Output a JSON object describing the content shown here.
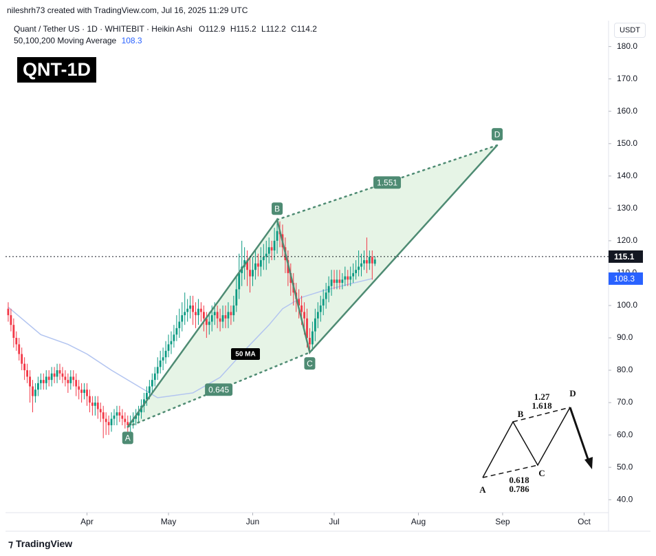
{
  "header": {
    "credit": "nileshrh73 created with TradingView.com, Jul 16, 2025 11:29 UTC",
    "symbol": "Quant / Tether US · 1D · WHITEBIT · Heikin Ashi",
    "ohlc": [
      "O112.9",
      "H115.2",
      "L112.2",
      "C114.2"
    ],
    "ma_title": "50,100,200 Moving Average",
    "badge": "QNT-1D",
    "currency": "USDT"
  },
  "footer": {
    "brand": "TradingView"
  },
  "chart_data": {
    "type": "candlestick",
    "up_color": "#089981",
    "down_color": "#f23645",
    "xlim": [
      61,
      283
    ],
    "ylim": [
      36,
      188
    ],
    "xticks": [
      {
        "value": 91,
        "label": "Apr"
      },
      {
        "value": 121,
        "label": "May"
      },
      {
        "value": 152,
        "label": "Jun"
      },
      {
        "value": 182,
        "label": "Jul"
      },
      {
        "value": 213,
        "label": "Aug"
      },
      {
        "value": 244,
        "label": "Sep"
      },
      {
        "value": 274,
        "label": "Oct"
      }
    ],
    "yticks": [
      {
        "value": 40,
        "label": "40.0"
      },
      {
        "value": 50,
        "label": "50.0"
      },
      {
        "value": 60,
        "label": "60.0"
      },
      {
        "value": 70,
        "label": "70.0"
      },
      {
        "value": 80,
        "label": "80.0"
      },
      {
        "value": 90,
        "label": "90.0"
      },
      {
        "value": 100,
        "label": "100.0"
      },
      {
        "value": 110,
        "label": "110.0"
      },
      {
        "value": 120,
        "label": "120.0"
      },
      {
        "value": 130,
        "label": "130.0"
      },
      {
        "value": 140,
        "label": "140.0"
      },
      {
        "value": 150,
        "label": "150.0"
      },
      {
        "value": 160,
        "label": "160.0"
      },
      {
        "value": 170,
        "label": "170.0"
      },
      {
        "value": 180,
        "label": "180.0"
      }
    ],
    "grid": false,
    "x_start": 62,
    "open": [
      99,
      97,
      94,
      90,
      88,
      85,
      82,
      80,
      78,
      75,
      72,
      74,
      76,
      77,
      76,
      78,
      77,
      79,
      78,
      80,
      79,
      78,
      77,
      76,
      78,
      77,
      75,
      74,
      73,
      74,
      72,
      70,
      69,
      70,
      68,
      67,
      65,
      64,
      63,
      65,
      66,
      67,
      66,
      65,
      64,
      63,
      64,
      65,
      66,
      67,
      69,
      71,
      73,
      75,
      77,
      79,
      81,
      83,
      84,
      86,
      88,
      89,
      91,
      93,
      95,
      97,
      98,
      99,
      100,
      98,
      97,
      99,
      98,
      96,
      94,
      95,
      97,
      98,
      96,
      95,
      97,
      96,
      98,
      97,
      100,
      105,
      110,
      112,
      114,
      111,
      109,
      111,
      113,
      112,
      114,
      115,
      116,
      118,
      117,
      120,
      123,
      122,
      118,
      114,
      110,
      107,
      104,
      102,
      100,
      98,
      96,
      90,
      88,
      92,
      96,
      98,
      100,
      102,
      104,
      106,
      108,
      107,
      108,
      107,
      108,
      109,
      108,
      109,
      110,
      111,
      112,
      113,
      114,
      113,
      115,
      112.9
    ],
    "high": [
      101,
      99,
      96,
      92,
      90,
      87,
      84,
      82,
      80,
      77,
      76,
      78,
      79,
      79,
      80,
      80,
      81,
      81,
      82,
      82,
      81,
      80,
      79,
      80,
      80,
      79,
      77,
      76,
      76,
      76,
      74,
      72,
      72,
      72,
      70,
      69,
      67,
      66,
      67,
      68,
      69,
      69,
      68,
      67,
      66,
      66,
      67,
      68,
      69,
      71,
      73,
      75,
      77,
      79,
      81,
      84,
      86,
      87,
      89,
      91,
      92,
      94,
      97,
      99,
      101,
      104,
      102,
      103,
      103,
      101,
      102,
      101,
      100,
      98,
      98,
      100,
      101,
      100,
      99,
      100,
      100,
      101,
      100,
      103,
      109,
      116,
      120,
      118,
      117,
      115,
      115,
      117,
      116,
      118,
      119,
      120,
      121,
      120,
      124,
      127,
      126,
      125,
      121,
      117,
      113,
      110,
      107,
      105,
      103,
      101,
      99,
      93,
      95,
      99,
      101,
      103,
      105,
      107,
      109,
      111,
      111,
      111,
      111,
      110,
      112,
      111,
      112,
      113,
      114,
      117,
      116,
      117,
      121,
      117,
      117,
      115.2
    ],
    "low": [
      95,
      92,
      87,
      86,
      83,
      80,
      77,
      76,
      70,
      67,
      70,
      72,
      74,
      74,
      74,
      75,
      75,
      76,
      76,
      77,
      76,
      75,
      73,
      74,
      75,
      72,
      71,
      70,
      71,
      69,
      67,
      66,
      66,
      65,
      64,
      59,
      60,
      60,
      61,
      63,
      63,
      64,
      63,
      62,
      61,
      61,
      62,
      63,
      64,
      65,
      67,
      69,
      71,
      73,
      75,
      77,
      79,
      80,
      82,
      84,
      85,
      87,
      89,
      90,
      92,
      94,
      95,
      96,
      94,
      93,
      94,
      95,
      92,
      90,
      91,
      92,
      94,
      93,
      92,
      93,
      93,
      93,
      94,
      95,
      98,
      102,
      106,
      108,
      106,
      104,
      106,
      108,
      109,
      109,
      111,
      111,
      113,
      114,
      114,
      116,
      118,
      115,
      110,
      106,
      103,
      100,
      98,
      96,
      94,
      91,
      87,
      85,
      86,
      89,
      93,
      95,
      97,
      99,
      101,
      103,
      105,
      105,
      105,
      105,
      106,
      106,
      106,
      107,
      108,
      109,
      109,
      111,
      110,
      111,
      108,
      112.2
    ],
    "close": [
      97,
      94,
      90,
      88,
      85,
      82,
      80,
      78,
      75,
      72,
      74,
      76,
      77,
      76,
      78,
      77,
      79,
      78,
      80,
      79,
      78,
      77,
      76,
      78,
      77,
      75,
      74,
      73,
      74,
      72,
      70,
      69,
      70,
      68,
      67,
      65,
      64,
      63,
      65,
      66,
      67,
      66,
      65,
      64,
      63,
      64,
      65,
      66,
      67,
      69,
      71,
      73,
      75,
      77,
      79,
      81,
      83,
      84,
      86,
      88,
      89,
      91,
      93,
      95,
      97,
      98,
      99,
      100,
      98,
      97,
      99,
      98,
      96,
      94,
      95,
      97,
      98,
      96,
      95,
      97,
      96,
      98,
      97,
      100,
      105,
      110,
      112,
      114,
      111,
      109,
      111,
      113,
      112,
      114,
      115,
      116,
      118,
      117,
      120,
      123,
      122,
      118,
      114,
      110,
      107,
      104,
      102,
      100,
      98,
      96,
      90,
      88,
      92,
      96,
      98,
      100,
      102,
      104,
      106,
      108,
      107,
      108,
      107,
      108,
      109,
      108,
      109,
      110,
      111,
      112,
      113,
      114,
      113,
      115,
      113,
      114.2
    ],
    "ma": {
      "name": "50 MA",
      "color": "#b2c4f0",
      "x": [
        62,
        74,
        84,
        91,
        100,
        108,
        117,
        130,
        140,
        150,
        158,
        163,
        170,
        178,
        188,
        196
      ],
      "values": [
        99.5,
        91,
        88,
        85,
        80,
        76,
        71.5,
        73,
        77.8,
        87,
        94,
        99,
        102.5,
        104.6,
        106.7,
        108.3
      ]
    },
    "last_price": 115.1,
    "pattern": {
      "color": "#4e8b73",
      "fill": "rgba(76,175,80,0.14)",
      "points": [
        {
          "label": "A",
          "x": 106,
          "y": 62.5
        },
        {
          "label": "B",
          "x": 161,
          "y": 126.5
        },
        {
          "label": "C",
          "x": 173,
          "y": 85.5
        },
        {
          "label": "D",
          "x": 242,
          "y": 149.5
        }
      ],
      "ratios": [
        0.645,
        1.551
      ]
    },
    "inset": {
      "labels": [
        "A",
        "B",
        "C",
        "D"
      ],
      "bd_ratios": [
        1.27,
        1.618
      ],
      "ac_ratios": [
        0.618,
        0.786
      ]
    }
  }
}
